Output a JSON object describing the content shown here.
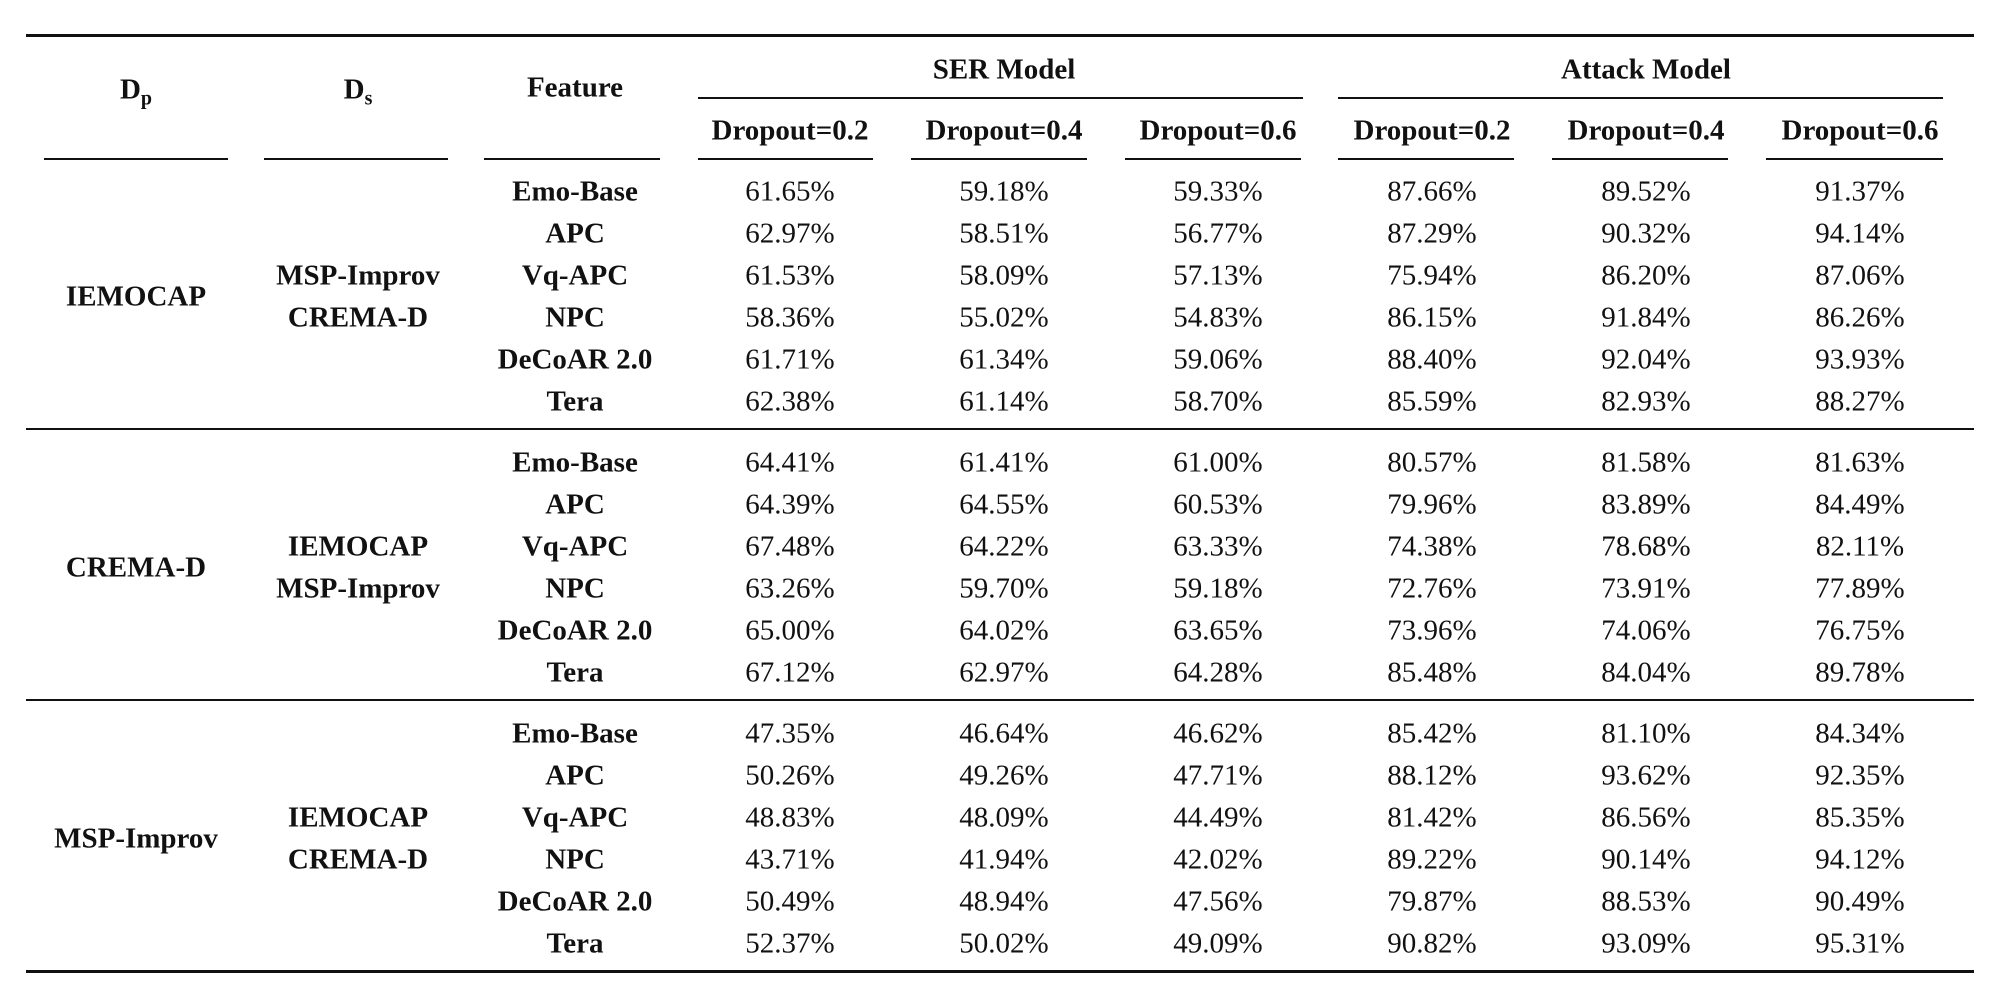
{
  "header": {
    "dp_main": "D",
    "dp_sub": "p",
    "ds_main": "D",
    "ds_sub": "s",
    "feature": "Feature",
    "ser_model": "SER Model",
    "attack_model": "Attack Model",
    "dropouts": [
      "Dropout=0.2",
      "Dropout=0.4",
      "Dropout=0.6",
      "Dropout=0.2",
      "Dropout=0.4",
      "Dropout=0.6"
    ]
  },
  "groups": [
    {
      "dp": "IEMOCAP",
      "ds": [
        "MSP-Improv",
        "CREMA-D"
      ],
      "rows": [
        {
          "feature": "Emo-Base",
          "values": [
            "61.65%",
            "59.18%",
            "59.33%",
            "87.66%",
            "89.52%",
            "91.37%"
          ]
        },
        {
          "feature": "APC",
          "values": [
            "62.97%",
            "58.51%",
            "56.77%",
            "87.29%",
            "90.32%",
            "94.14%"
          ]
        },
        {
          "feature": "Vq-APC",
          "values": [
            "61.53%",
            "58.09%",
            "57.13%",
            "75.94%",
            "86.20%",
            "87.06%"
          ]
        },
        {
          "feature": "NPC",
          "values": [
            "58.36%",
            "55.02%",
            "54.83%",
            "86.15%",
            "91.84%",
            "86.26%"
          ]
        },
        {
          "feature": "DeCoAR 2.0",
          "values": [
            "61.71%",
            "61.34%",
            "59.06%",
            "88.40%",
            "92.04%",
            "93.93%"
          ]
        },
        {
          "feature": "Tera",
          "values": [
            "62.38%",
            "61.14%",
            "58.70%",
            "85.59%",
            "82.93%",
            "88.27%"
          ]
        }
      ]
    },
    {
      "dp": "CREMA-D",
      "ds": [
        "IEMOCAP",
        "MSP-Improv"
      ],
      "rows": [
        {
          "feature": "Emo-Base",
          "values": [
            "64.41%",
            "61.41%",
            "61.00%",
            "80.57%",
            "81.58%",
            "81.63%"
          ]
        },
        {
          "feature": "APC",
          "values": [
            "64.39%",
            "64.55%",
            "60.53%",
            "79.96%",
            "83.89%",
            "84.49%"
          ]
        },
        {
          "feature": "Vq-APC",
          "values": [
            "67.48%",
            "64.22%",
            "63.33%",
            "74.38%",
            "78.68%",
            "82.11%"
          ]
        },
        {
          "feature": "NPC",
          "values": [
            "63.26%",
            "59.70%",
            "59.18%",
            "72.76%",
            "73.91%",
            "77.89%"
          ]
        },
        {
          "feature": "DeCoAR 2.0",
          "values": [
            "65.00%",
            "64.02%",
            "63.65%",
            "73.96%",
            "74.06%",
            "76.75%"
          ]
        },
        {
          "feature": "Tera",
          "values": [
            "67.12%",
            "62.97%",
            "64.28%",
            "85.48%",
            "84.04%",
            "89.78%"
          ]
        }
      ]
    },
    {
      "dp": "MSP-Improv",
      "ds": [
        "IEMOCAP",
        "CREMA-D"
      ],
      "rows": [
        {
          "feature": "Emo-Base",
          "values": [
            "47.35%",
            "46.64%",
            "46.62%",
            "85.42%",
            "81.10%",
            "84.34%"
          ]
        },
        {
          "feature": "APC",
          "values": [
            "50.26%",
            "49.26%",
            "47.71%",
            "88.12%",
            "93.62%",
            "92.35%"
          ]
        },
        {
          "feature": "Vq-APC",
          "values": [
            "48.83%",
            "48.09%",
            "44.49%",
            "81.42%",
            "86.56%",
            "85.35%"
          ]
        },
        {
          "feature": "NPC",
          "values": [
            "43.71%",
            "41.94%",
            "42.02%",
            "89.22%",
            "90.14%",
            "94.12%"
          ]
        },
        {
          "feature": "DeCoAR 2.0",
          "values": [
            "50.49%",
            "48.94%",
            "47.56%",
            "79.87%",
            "88.53%",
            "90.49%"
          ]
        },
        {
          "feature": "Tera",
          "values": [
            "52.37%",
            "50.02%",
            "49.09%",
            "90.82%",
            "93.09%",
            "95.31%"
          ]
        }
      ]
    }
  ]
}
